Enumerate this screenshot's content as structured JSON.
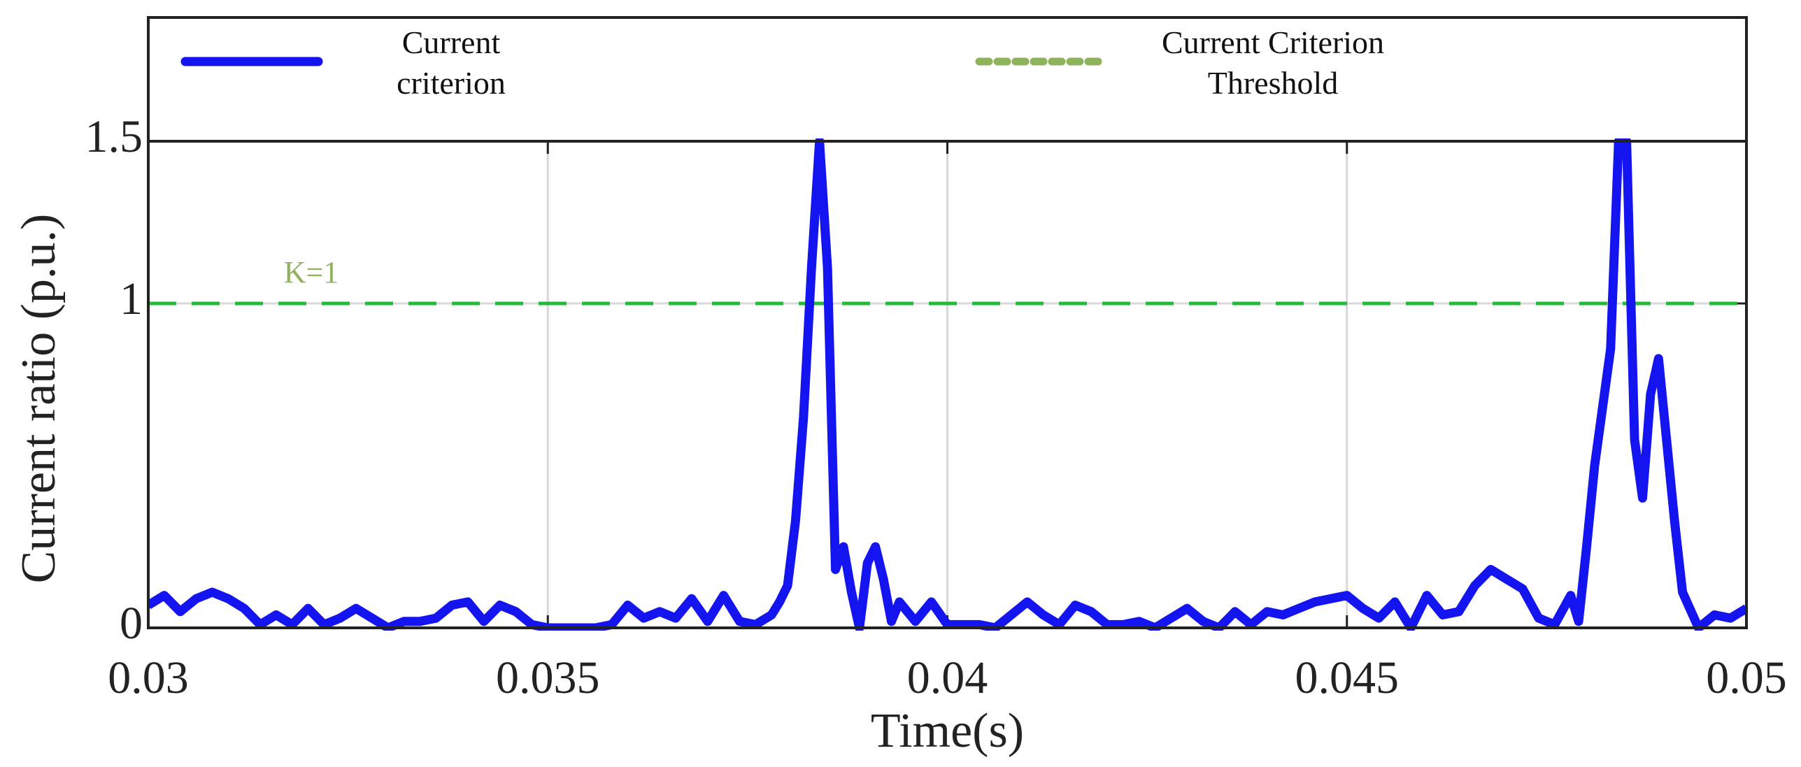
{
  "chart_data": {
    "type": "line",
    "xlabel": "Time(s)",
    "ylabel": "Current ratio (p.u.)",
    "xlim": [
      0.03,
      0.05
    ],
    "xticks": [
      0.03,
      0.035,
      0.04,
      0.045,
      0.05
    ],
    "ylim": [
      0,
      1.5
    ],
    "yticks": [
      0,
      1,
      1.5
    ],
    "grid": true,
    "legend": "top",
    "x": [
      0.03,
      0.0302,
      0.0304,
      0.0306,
      0.0308,
      0.031,
      0.0312,
      0.0314,
      0.0316,
      0.0318,
      0.032,
      0.0322,
      0.0324,
      0.0326,
      0.0328,
      0.033,
      0.0332,
      0.0334,
      0.0336,
      0.0338,
      0.034,
      0.0342,
      0.0344,
      0.0346,
      0.0348,
      0.035,
      0.0352,
      0.0354,
      0.0356,
      0.0358,
      0.036,
      0.0362,
      0.0364,
      0.0366,
      0.0368,
      0.037,
      0.0372,
      0.0374,
      0.0376,
      0.0378,
      0.0379,
      0.038,
      0.0381,
      0.0382,
      0.0383,
      0.0384,
      0.0385,
      0.0386,
      0.0387,
      0.0388,
      0.0389,
      0.039,
      0.0391,
      0.0392,
      0.0393,
      0.0394,
      0.0396,
      0.0398,
      0.04,
      0.0402,
      0.0404,
      0.0406,
      0.0408,
      0.041,
      0.0412,
      0.0414,
      0.0416,
      0.0418,
      0.042,
      0.0422,
      0.0424,
      0.0426,
      0.0428,
      0.043,
      0.0432,
      0.0434,
      0.0436,
      0.0438,
      0.044,
      0.0442,
      0.0444,
      0.0446,
      0.0448,
      0.045,
      0.0452,
      0.0454,
      0.0456,
      0.0458,
      0.046,
      0.0462,
      0.0464,
      0.0466,
      0.0468,
      0.047,
      0.0472,
      0.0474,
      0.0476,
      0.0478,
      0.0479,
      0.048,
      0.0481,
      0.0482,
      0.0483,
      0.0484,
      0.0485,
      0.0486,
      0.0487,
      0.0488,
      0.0489,
      0.049,
      0.0491,
      0.0492,
      0.0494,
      0.0496,
      0.0498,
      0.05
    ],
    "series": [
      {
        "name": "Current criterion",
        "color": "#1414f0",
        "values": [
          0.07,
          0.1,
          0.05,
          0.09,
          0.11,
          0.09,
          0.06,
          0.01,
          0.04,
          0.01,
          0.06,
          0.01,
          0.03,
          0.06,
          0.03,
          0,
          0.02,
          0.02,
          0.03,
          0.07,
          0.08,
          0.02,
          0.07,
          0.05,
          0.01,
          0,
          0,
          0,
          0,
          0.01,
          0.07,
          0.03,
          0.05,
          0.03,
          0.09,
          0.02,
          0.1,
          0.02,
          0.01,
          0.04,
          0.08,
          0.13,
          0.33,
          0.65,
          1.11,
          1.5,
          1.11,
          0.18,
          0.25,
          0.11,
          0,
          0.2,
          0.25,
          0.15,
          0.02,
          0.08,
          0.02,
          0.08,
          0.01,
          0.01,
          0.01,
          0,
          0.04,
          0.08,
          0.04,
          0.01,
          0.07,
          0.05,
          0.01,
          0.01,
          0.02,
          0,
          0.03,
          0.06,
          0.02,
          0,
          0.05,
          0.01,
          0.05,
          0.04,
          0.06,
          0.08,
          0.09,
          0.1,
          0.06,
          0.03,
          0.08,
          0,
          0.1,
          0.04,
          0.05,
          0.13,
          0.18,
          0.15,
          0.12,
          0.03,
          0.01,
          0.1,
          0.02,
          0.25,
          0.5,
          0.68,
          0.86,
          1.5,
          1.5,
          0.58,
          0.4,
          0.72,
          0.83,
          0.58,
          0.33,
          0.11,
          0,
          0.04,
          0.03,
          0.06
        ]
      }
    ],
    "threshold": {
      "name": "Current Criterion Threshold",
      "value": 1,
      "label": "K=1",
      "color": "#22bb3a",
      "legend_color": "#8fb35c"
    }
  }
}
